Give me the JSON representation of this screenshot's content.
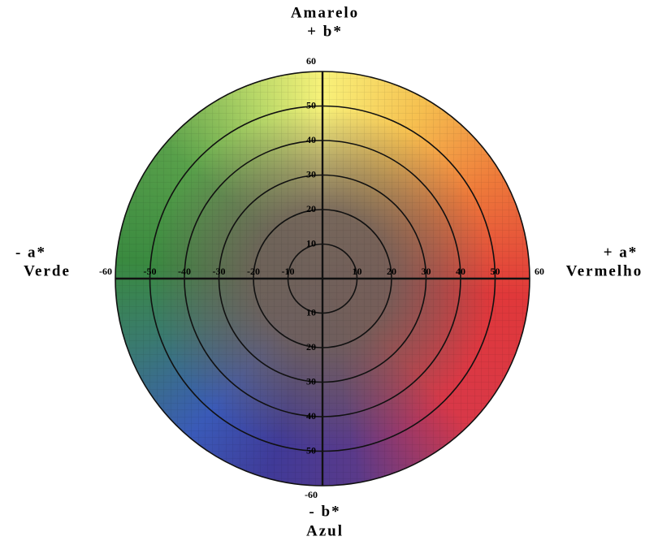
{
  "top_label": {
    "name": "Amarelo",
    "axis": "+ b*"
  },
  "bottom_label": {
    "axis": "- b*",
    "name": "Azul"
  },
  "left_label": {
    "axis": "- a*",
    "name": "Verde"
  },
  "right_label": {
    "axis": "+ a*",
    "name": "Vermelho"
  },
  "a_axis": {
    "lim": [
      -60,
      60
    ],
    "ticks": [
      -60,
      -50,
      -40,
      -30,
      -20,
      -10,
      10,
      20,
      30,
      40,
      50,
      60
    ]
  },
  "b_axis": {
    "lim": [
      -60,
      60
    ],
    "ticks": [
      60,
      50,
      40,
      30,
      20,
      10,
      {
        "value": -10,
        "label": "10"
      },
      {
        "value": -20,
        "label": "20"
      },
      {
        "value": -30,
        "label": "30"
      },
      {
        "value": -40,
        "label": "40"
      },
      {
        "value": -50,
        "label": "50"
      },
      -60
    ]
  }
}
